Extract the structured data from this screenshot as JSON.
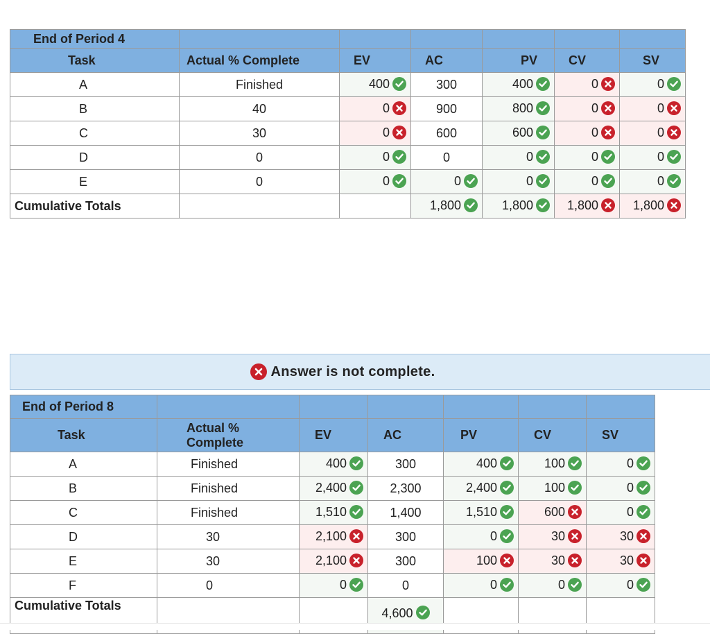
{
  "period4": {
    "title": "End of Period 4",
    "headers": [
      "Task",
      "Actual % Complete",
      "EV",
      "AC",
      "PV",
      "CV",
      "SV"
    ],
    "rows": [
      {
        "task": "A",
        "pct": "Finished",
        "ev": "400",
        "ev_s": "ok",
        "ac": "300",
        "pv": "400",
        "pv_s": "ok",
        "cv": "0",
        "cv_s": "bad",
        "sv": "0",
        "sv_s": "ok"
      },
      {
        "task": "B",
        "pct": "40",
        "ev": "0",
        "ev_s": "bad",
        "ac": "900",
        "pv": "800",
        "pv_s": "ok",
        "cv": "0",
        "cv_s": "bad",
        "sv": "0",
        "sv_s": "bad"
      },
      {
        "task": "C",
        "pct": "30",
        "ev": "0",
        "ev_s": "bad",
        "ac": "600",
        "pv": "600",
        "pv_s": "ok",
        "cv": "0",
        "cv_s": "bad",
        "sv": "0",
        "sv_s": "bad"
      },
      {
        "task": "D",
        "pct": "0",
        "ev": "0",
        "ev_s": "ok",
        "ac": "0",
        "pv": "0",
        "pv_s": "ok",
        "cv": "0",
        "cv_s": "ok",
        "sv": "0",
        "sv_s": "ok"
      },
      {
        "task": "E",
        "pct": "0",
        "ev": "0",
        "ev_s": "ok",
        "ac": "0",
        "ac_s": "ok",
        "pv": "0",
        "pv_s": "ok",
        "cv": "0",
        "cv_s": "ok",
        "sv": "0",
        "sv_s": "ok"
      }
    ],
    "totals": {
      "label": "Cumulative Totals",
      "ac": "1,800",
      "ac_s": "ok",
      "pv": "1,800",
      "pv_s": "ok",
      "cv": "1,800",
      "cv_s": "bad",
      "sv": "1,800",
      "sv_s": "bad"
    }
  },
  "banner": {
    "text": "Answer is not complete."
  },
  "period8": {
    "title": "End of Period 8",
    "headers": [
      "Task",
      "Actual % Complete",
      "EV",
      "AC",
      "PV",
      "CV",
      "SV"
    ],
    "rows": [
      {
        "task": "A",
        "pct": "Finished",
        "ev": "400",
        "ev_s": "ok",
        "ac": "300",
        "pv": "400",
        "pv_s": "ok",
        "cv": "100",
        "cv_s": "ok",
        "sv": "0",
        "sv_s": "ok"
      },
      {
        "task": "B",
        "pct": "Finished",
        "ev": "2,400",
        "ev_s": "ok",
        "ac": "2,300",
        "pv": "2,400",
        "pv_s": "ok",
        "cv": "100",
        "cv_s": "ok",
        "sv": "0",
        "sv_s": "ok"
      },
      {
        "task": "C",
        "pct": "Finished",
        "ev": "1,510",
        "ev_s": "ok",
        "ac": "1,400",
        "pv": "1,510",
        "pv_s": "ok",
        "cv": "600",
        "cv_s": "bad",
        "sv": "0",
        "sv_s": "ok"
      },
      {
        "task": "D",
        "pct": "30",
        "ev": "2,100",
        "ev_s": "bad",
        "ac": "300",
        "pv": "0",
        "pv_s": "ok",
        "cv": "30",
        "cv_s": "bad",
        "sv": "30",
        "sv_s": "bad"
      },
      {
        "task": "E",
        "pct": "30",
        "ev": "2,100",
        "ev_s": "bad",
        "ac": "300",
        "pv": "100",
        "pv_s": "bad",
        "cv": "30",
        "cv_s": "bad",
        "sv": "30",
        "sv_s": "bad"
      },
      {
        "task": "F",
        "pct": "0",
        "ev": "0",
        "ev_s": "ok",
        "ac": "0",
        "pv": "0",
        "pv_s": "ok",
        "cv": "0",
        "cv_s": "ok",
        "sv": "0",
        "sv_s": "ok"
      }
    ],
    "totals": {
      "label": "Cumulative Totals",
      "ac": "4,600",
      "ac_s": "ok"
    }
  },
  "icons": {
    "correct": "check-circle-icon",
    "incorrect": "x-circle-icon"
  },
  "colors": {
    "header_bg": "#7fb0e0",
    "correct": "#4ba352",
    "incorrect": "#c8212b",
    "banner_bg": "#dcebf7"
  }
}
